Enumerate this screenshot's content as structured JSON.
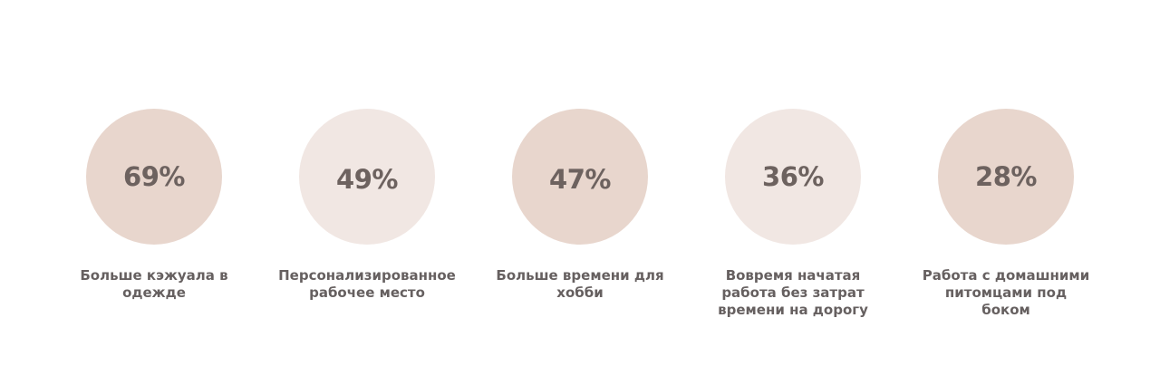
{
  "stats": [
    {
      "value": "69%",
      "caption_lines": [
        "Больше кэжуала в",
        "одежде"
      ],
      "circle_color": "#e8d6cd"
    },
    {
      "value": "49%",
      "caption_lines": [
        "Персонализированное",
        "рабочее место"
      ],
      "circle_color": "#f1e7e3"
    },
    {
      "value": "47%",
      "caption_lines": [
        "Больше времени для",
        "хобби"
      ],
      "circle_color": "#e8d6cd"
    },
    {
      "value": "36%",
      "caption_lines": [
        "Вовремя начатая",
        "работа без затрат",
        "времени на дорогу"
      ],
      "circle_color": "#f1e7e3"
    },
    {
      "value": "28%",
      "caption_lines": [
        "Работа с домашними",
        "питомцами под",
        "боком"
      ],
      "circle_color": "#e8d6cd"
    }
  ],
  "colors": {
    "text": "#6d625f",
    "caption": "#666060",
    "background": "#ffffff"
  }
}
